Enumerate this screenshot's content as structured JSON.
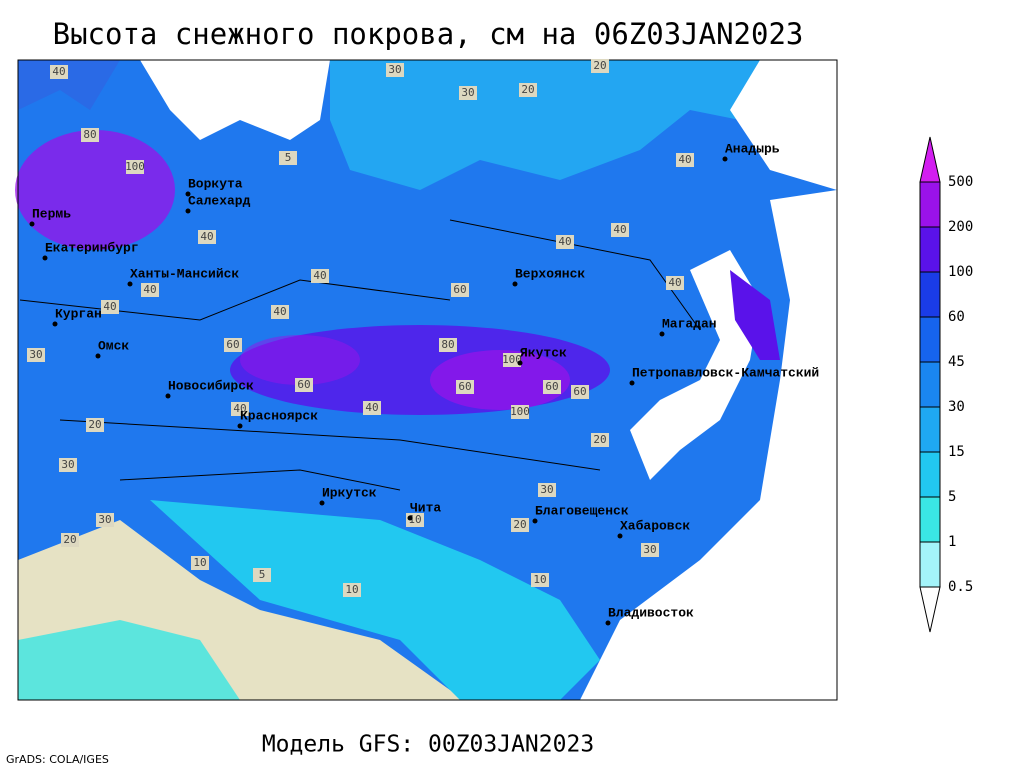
{
  "header": {
    "title": "Высота снежного покрова, см на 06Z03JAN2023"
  },
  "footer": {
    "model": "Модель GFS: 00Z03JAN2023",
    "credit": "GrADS: COLA/IGES"
  },
  "cities": [
    "Воркута",
    "Салехард",
    "Пермь",
    "Екатеринбург",
    "Ханты-Мансийск",
    "Курган",
    "Омск",
    "Новосибирск",
    "Красноярск",
    "Иркутск",
    "Чита",
    "Благовещенск",
    "Хабаровск",
    "Владивосток",
    "Якутск",
    "Верхоянск",
    "Магадан",
    "Петропавловск-Камчатский",
    "Анадырь"
  ],
  "contour_labels": [
    40,
    30,
    20,
    30,
    20,
    80,
    100,
    5,
    40,
    40,
    40,
    30,
    60,
    40,
    40,
    60,
    40,
    40,
    40,
    40,
    80,
    100,
    60,
    100,
    60,
    60,
    40,
    60,
    40,
    20,
    30,
    30,
    20,
    10,
    5,
    10,
    10,
    20,
    30,
    10,
    30,
    20
  ],
  "legend": {
    "levels": [
      500,
      200,
      100,
      60,
      45,
      30,
      15,
      5,
      1,
      0.5
    ],
    "colors": [
      "#d21ef0",
      "#9a12ea",
      "#5a12ea",
      "#1a3ce8",
      "#1664ee",
      "#1a86f0",
      "#1fa8f2",
      "#22c8f0",
      "#3ae6e4",
      "#a4f4fa",
      "#ffffff"
    ]
  }
}
